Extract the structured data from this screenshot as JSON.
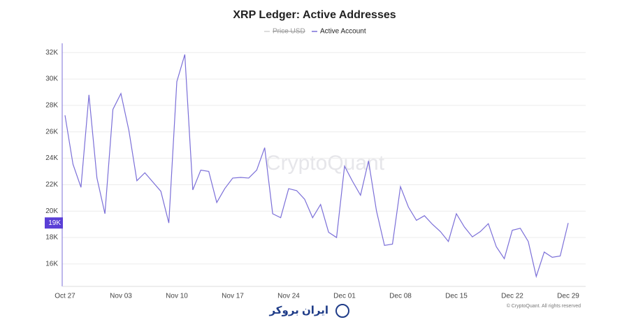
{
  "chart_data": {
    "type": "line",
    "title": "XRP Ledger: Active Addresses",
    "legend_hidden": "Price USD",
    "watermark": "CryptoQuant",
    "copyright": "© CryptoQuant. All rights reserved",
    "brand": "ایران بروکر",
    "categories": [
      "Oct 27",
      null,
      null,
      null,
      null,
      null,
      null,
      "Nov 03",
      null,
      null,
      null,
      null,
      null,
      null,
      "Nov 10",
      null,
      null,
      null,
      null,
      null,
      null,
      "Nov 17",
      null,
      null,
      null,
      null,
      null,
      null,
      "Nov 24",
      null,
      null,
      null,
      null,
      null,
      null,
      "Dec 01",
      null,
      null,
      null,
      null,
      null,
      null,
      "Dec 08",
      null,
      null,
      null,
      null,
      null,
      null,
      "Dec 15",
      null,
      null,
      null,
      null,
      null,
      null,
      "Dec 22",
      null,
      null,
      null,
      null,
      null,
      null,
      "Dec 29"
    ],
    "series": [
      {
        "name": "Active Account",
        "color": "#7b6fd8",
        "values": [
          27.25,
          23.55,
          21.8,
          28.8,
          22.5,
          19.8,
          27.7,
          28.9,
          26.1,
          22.3,
          22.9,
          22.2,
          21.5,
          19.1,
          29.8,
          31.85,
          21.6,
          23.1,
          23.0,
          20.65,
          21.7,
          22.5,
          22.55,
          22.5,
          23.1,
          24.8,
          19.8,
          19.5,
          21.7,
          21.55,
          20.9,
          19.5,
          20.5,
          18.4,
          18.0,
          23.4,
          22.25,
          21.2,
          23.8,
          20.0,
          17.4,
          17.5,
          21.85,
          20.3,
          19.3,
          19.65,
          19.0,
          18.45,
          17.7,
          19.8,
          18.8,
          18.05,
          18.45,
          19.05,
          17.3,
          16.4,
          18.55,
          18.7,
          17.7,
          15.05,
          16.9,
          16.5,
          16.6,
          19.1
        ]
      }
    ],
    "last_value_label": "19K",
    "ylim": [
      14.3,
      32.7
    ],
    "yticks": [
      {
        "value": 16,
        "label": "16K"
      },
      {
        "value": 18,
        "label": "18K"
      },
      {
        "value": 20,
        "label": "20K"
      },
      {
        "value": 22,
        "label": "22K"
      },
      {
        "value": 24,
        "label": "24K"
      },
      {
        "value": 26,
        "label": "26K"
      },
      {
        "value": 28,
        "label": "28K"
      },
      {
        "value": 30,
        "label": "30K"
      },
      {
        "value": 32,
        "label": "32K"
      }
    ],
    "grid": true
  }
}
